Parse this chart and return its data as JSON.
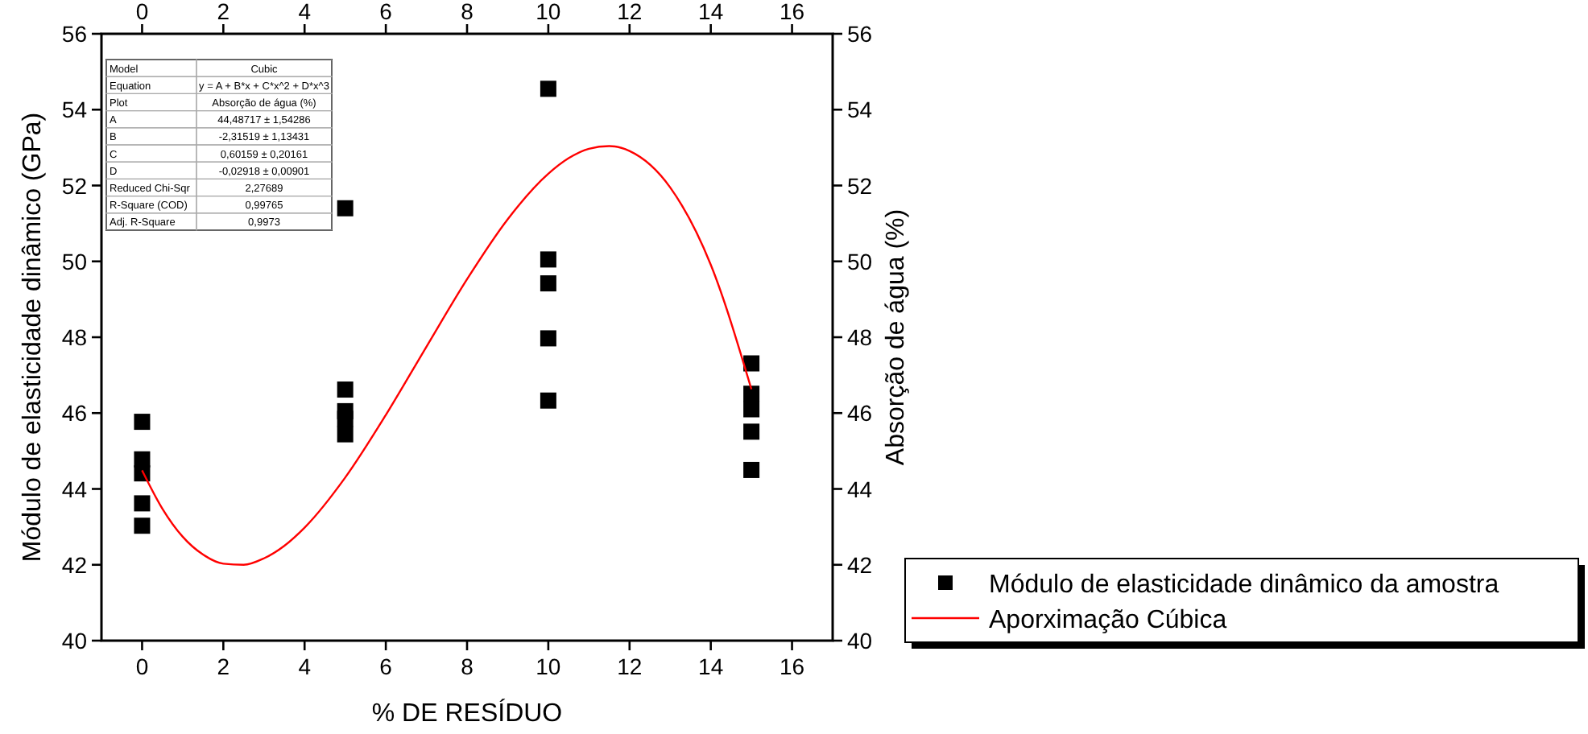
{
  "chart_data": {
    "type": "scatter",
    "xlabel": "% DE RESÍDUO",
    "ylabel": "Módulo de elasticidade dinâmico (GPa)",
    "y2label": "Absorção de água (%)",
    "xlim": [
      -1,
      17
    ],
    "xticks": [
      0,
      2,
      4,
      6,
      8,
      10,
      12,
      14,
      16
    ],
    "x2lim": [
      -1,
      17
    ],
    "x2ticks": [
      0,
      2,
      4,
      6,
      8,
      10,
      12,
      14,
      16
    ],
    "ylim": [
      40,
      56
    ],
    "yticks": [
      40,
      42,
      44,
      46,
      48,
      50,
      52,
      54,
      56
    ],
    "y2lim": [
      40,
      56
    ],
    "y2ticks": [
      40,
      42,
      44,
      46,
      48,
      50,
      52,
      54,
      56
    ],
    "marker": "square",
    "legend": "bottom right",
    "grid": false,
    "series": [
      {
        "name": "Módulo de elasticidade dinâmico da amostra",
        "type": "scatter",
        "color": "#000000",
        "x": [
          0,
          0,
          0,
          0,
          0,
          5,
          5,
          5,
          5,
          5,
          10,
          10,
          10,
          10,
          10,
          15,
          15,
          15,
          15,
          15
        ],
        "values": [
          45.77,
          44.78,
          44.41,
          43.62,
          43.03,
          51.4,
          46.62,
          46.05,
          45.85,
          45.44,
          54.55,
          50.05,
          49.42,
          47.97,
          46.33,
          47.31,
          46.51,
          46.1,
          45.51,
          44.5
        ]
      },
      {
        "name": "Aporximação Cúbica",
        "type": "line",
        "color": "#ff0000",
        "line_style": "solid",
        "marker": "none",
        "x": [
          0,
          0.5,
          1,
          1.5,
          2,
          2.5,
          3,
          3.5,
          4,
          5,
          6,
          7,
          8,
          9,
          10,
          10.5,
          11,
          11.5,
          12,
          13,
          14,
          15
        ],
        "values": [
          44.49,
          43.48,
          42.74,
          42.27,
          42.03,
          42.0,
          42.17,
          42.5,
          42.98,
          44.3,
          45.95,
          47.75,
          49.53,
          51.11,
          52.31,
          52.72,
          52.97,
          53.04,
          52.91,
          51.95,
          49.91,
          46.63
        ]
      }
    ],
    "annotations": [
      "Model",
      "Cubic",
      "Equation",
      "y = A + B*x + C*x^2 + D*x^3",
      "Plot",
      "Absorção de água (%)",
      "A",
      "44,48717 ± 1,54286",
      "B",
      "-2,31519 ± 1,13431",
      "C",
      "0,60159 ± 0,20161",
      "D",
      "-0,02918 ± 0,00901",
      "Reduced Chi-Sqr",
      "2,27689",
      "R-Square (COD)",
      "0,99765",
      "Adj. R-Square",
      "0,9973"
    ]
  }
}
